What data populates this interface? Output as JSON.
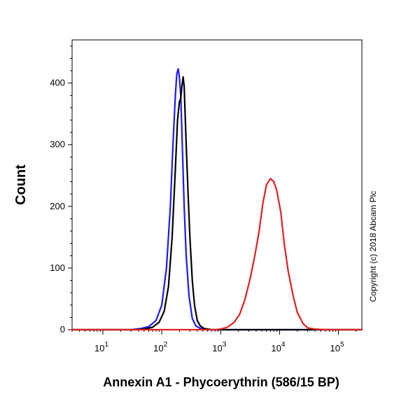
{
  "chart_data": {
    "type": "line",
    "title": "",
    "xlabel": "Annexin A1 - Phycoerythrin (586/15 BP)",
    "ylabel": "Count",
    "x_scale": "log10",
    "xlim": [
      3,
      250000
    ],
    "ylim": [
      0,
      470
    ],
    "y_ticks": [
      0,
      100,
      200,
      300,
      400
    ],
    "x_ticks": [
      {
        "base": "10",
        "exp": "1",
        "value": 10
      },
      {
        "base": "10",
        "exp": "2",
        "value": 100
      },
      {
        "base": "10",
        "exp": "3",
        "value": 1000
      },
      {
        "base": "10",
        "exp": "4",
        "value": 10000
      },
      {
        "base": "10",
        "exp": "5",
        "value": 100000
      }
    ],
    "grid": false,
    "legend": "none",
    "series": [
      {
        "color": "#1a1aff",
        "x": [
          3,
          30,
          45,
          60,
          80,
          100,
          120,
          140,
          155,
          170,
          180,
          190,
          200,
          210,
          220,
          240,
          260,
          290,
          330,
          380,
          450,
          600,
          1000,
          250000
        ],
        "y": [
          0,
          0,
          2,
          5,
          15,
          40,
          100,
          200,
          300,
          380,
          415,
          423,
          408,
          380,
          320,
          200,
          120,
          55,
          18,
          6,
          2,
          0,
          0,
          0
        ]
      },
      {
        "color": "#000000",
        "x": [
          3,
          35,
          50,
          70,
          90,
          110,
          130,
          150,
          170,
          185,
          200,
          210,
          220,
          230,
          240,
          260,
          280,
          300,
          330,
          360,
          400,
          450,
          520,
          700,
          1200,
          250000
        ],
        "y": [
          0,
          0,
          1,
          4,
          12,
          30,
          70,
          150,
          260,
          340,
          370,
          375,
          395,
          410,
          395,
          300,
          220,
          150,
          80,
          40,
          15,
          6,
          2,
          0,
          0,
          0
        ]
      },
      {
        "color": "#e02020",
        "x": [
          3,
          800,
          1000,
          1300,
          1700,
          2100,
          2600,
          3200,
          3800,
          4500,
          5200,
          6000,
          7000,
          8000,
          9000,
          10500,
          12000,
          14000,
          17000,
          20000,
          25000,
          30000,
          40000,
          60000,
          250000
        ],
        "y": [
          0,
          0,
          1,
          4,
          12,
          25,
          50,
          85,
          120,
          160,
          205,
          235,
          245,
          240,
          225,
          190,
          140,
          95,
          55,
          28,
          10,
          3,
          1,
          0,
          0
        ]
      }
    ]
  },
  "copyright": "Copyright (c) 2018 Abcam Plc"
}
